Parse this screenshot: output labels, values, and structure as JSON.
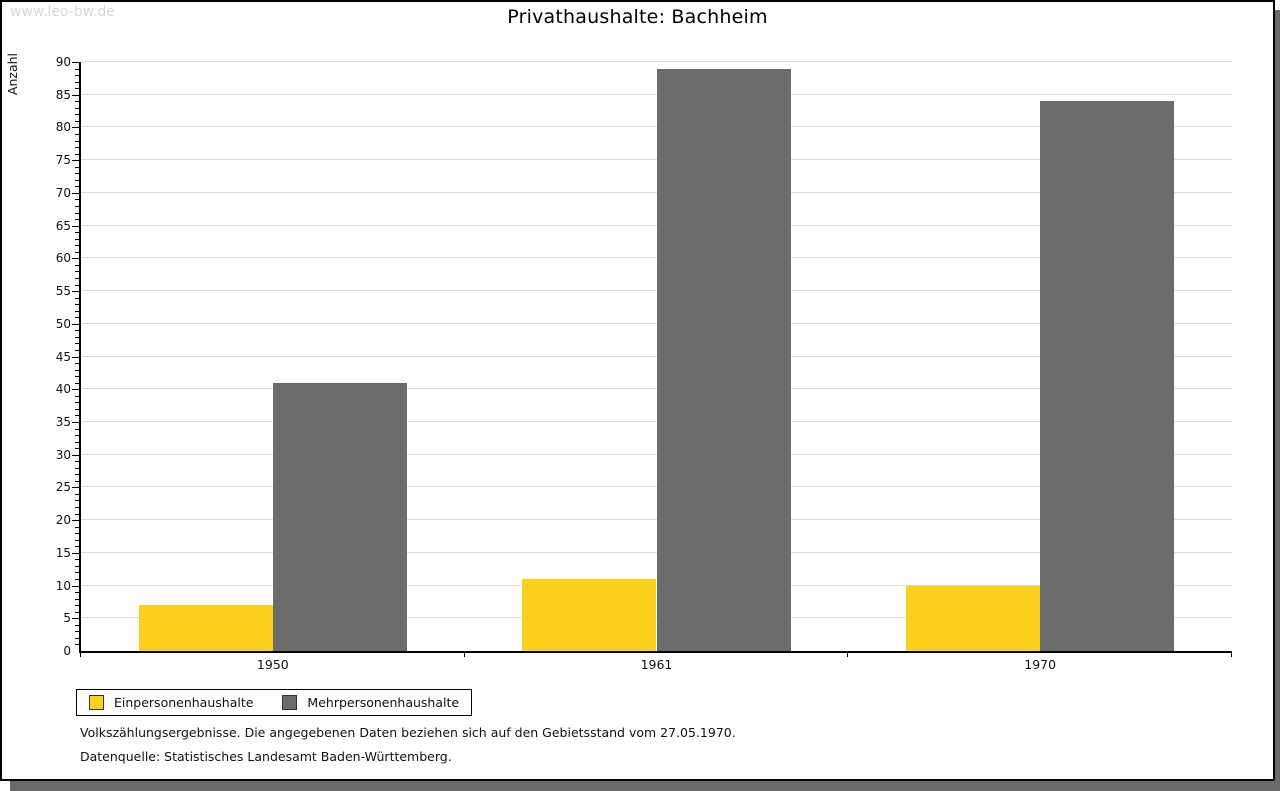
{
  "watermark": "www.leo-bw.de",
  "header": {
    "title": "Privathaushalte: Bachheim"
  },
  "chart_data": {
    "type": "bar",
    "title": "Privathaushalte: Bachheim",
    "ylabel": "Anzahl",
    "xlabel": "",
    "categories": [
      "1950",
      "1961",
      "1970"
    ],
    "series": [
      {
        "name": "Einpersonenhaushalte",
        "color": "#fcd11e",
        "values": [
          7,
          11,
          10
        ]
      },
      {
        "name": "Mehrpersonenhaushalte",
        "color": "#6c6c6c",
        "values": [
          41,
          89,
          84
        ]
      }
    ],
    "ylim": [
      0,
      90
    ],
    "y_tick_step": 5,
    "y_minor_tick_step": 1,
    "grid": true,
    "gridline_color": "#dedede",
    "legend_position": "bottom-left"
  },
  "footer": {
    "note1": "Volkszählungsergebnisse. Die angegebenen Daten beziehen sich auf den Gebietsstand vom 27.05.1970.",
    "note2": "Datenquelle: Statistisches Landesamt Baden-Württemberg."
  }
}
